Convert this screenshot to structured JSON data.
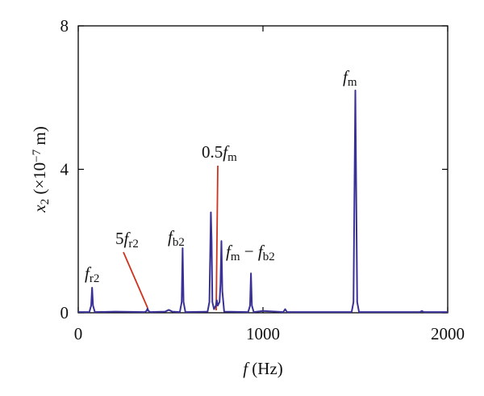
{
  "chart_data": {
    "type": "line",
    "x": [
      0,
      60,
      70,
      75,
      80,
      90,
      200,
      360,
      370,
      375,
      380,
      390,
      470,
      490,
      510,
      550,
      560,
      565,
      570,
      580,
      700,
      710,
      718,
      722,
      726,
      735,
      745,
      750,
      755,
      765,
      770,
      775,
      780,
      790,
      920,
      930,
      935,
      940,
      950,
      1000,
      1110,
      1120,
      1130,
      1480,
      1490,
      1500,
      1510,
      1520,
      1850,
      1860,
      1870,
      2000
    ],
    "series": [
      {
        "color": "#3a3196",
        "values": [
          0.02,
          0.02,
          0.2,
          0.7,
          0.2,
          0.02,
          0.03,
          0.02,
          0.05,
          0.12,
          0.05,
          0.02,
          0.03,
          0.08,
          0.03,
          0.02,
          0.3,
          1.8,
          0.3,
          0.02,
          0.03,
          0.3,
          2.8,
          2.0,
          0.3,
          0.1,
          0.2,
          0.35,
          0.2,
          0.3,
          0.8,
          2.0,
          0.6,
          0.03,
          0.02,
          0.2,
          1.1,
          0.2,
          0.02,
          0.05,
          0.02,
          0.1,
          0.02,
          0.02,
          0.3,
          6.2,
          0.3,
          0.02,
          0.02,
          0.05,
          0.02,
          0.02
        ]
      }
    ],
    "xlim": [
      0,
      2000
    ],
    "xticks": [
      0,
      1000,
      2000
    ],
    "ylim": [
      0,
      8
    ],
    "yticks": [
      0,
      4,
      8
    ],
    "xlabel": [
      {
        "t": "f",
        "i": true
      },
      {
        "t": " (Hz)"
      }
    ],
    "ylabel": [
      {
        "t": "x",
        "i": true
      },
      {
        "t": "2",
        "sub": true
      },
      {
        "t": " (×10"
      },
      {
        "t": "−7",
        "sup": true
      },
      {
        "t": " m)"
      }
    ],
    "annotations": [
      {
        "parts": [
          {
            "t": "f",
            "i": true
          },
          {
            "t": "r2",
            "sub": true
          }
        ]
      },
      {
        "parts": [
          {
            "t": "5"
          },
          {
            "t": "f",
            "i": true
          },
          {
            "t": "r2",
            "sub": true
          }
        ]
      },
      {
        "parts": [
          {
            "t": "f",
            "i": true
          },
          {
            "t": "b2",
            "sub": true
          }
        ]
      },
      {
        "parts": [
          {
            "t": "0.5"
          },
          {
            "t": "f",
            "i": true
          },
          {
            "t": "m",
            "sub": true
          }
        ]
      },
      {
        "parts": [
          {
            "t": "f",
            "i": true
          },
          {
            "t": "m",
            "sub": true
          },
          {
            "t": " − "
          },
          {
            "t": "f",
            "i": true
          },
          {
            "t": "b2",
            "sub": true
          }
        ]
      },
      {
        "parts": [
          {
            "t": "f",
            "i": true
          },
          {
            "t": "m",
            "sub": true
          }
        ]
      }
    ]
  }
}
